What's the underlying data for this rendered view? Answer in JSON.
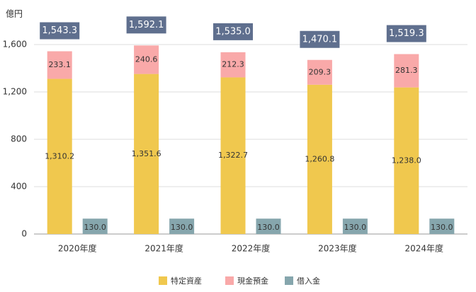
{
  "chart_data": {
    "type": "bar",
    "y_label": "億円",
    "categories": [
      "2020年度",
      "2021年度",
      "2022年度",
      "2023年度",
      "2024年度"
    ],
    "series": [
      {
        "name": "特定資産",
        "color": "#f0c84e",
        "stack": "a",
        "values": [
          1310.2,
          1351.6,
          1322.7,
          1260.8,
          1238.0
        ],
        "value_labels": [
          "1,310.2",
          "1,351.6",
          "1,322.7",
          "1,260.8",
          "1,238.0"
        ]
      },
      {
        "name": "現金預金",
        "color": "#f9a9a9",
        "stack": "a",
        "values": [
          233.1,
          240.6,
          212.3,
          209.3,
          281.3
        ],
        "value_labels": [
          "233.1",
          "240.6",
          "212.3",
          "209.3",
          "281.3"
        ]
      },
      {
        "name": "借入金",
        "color": "#86a6ad",
        "stack": "b",
        "values": [
          130,
          130,
          130,
          130,
          130
        ],
        "value_labels": [
          "130.0",
          "130.0",
          "130.0",
          "130.0",
          "130.0"
        ]
      }
    ],
    "totals": {
      "color": "#5f6f8e",
      "values": [
        1543.3,
        1592.1,
        1535.0,
        1470.1,
        1519.3
      ],
      "value_labels": [
        "1,543.3",
        "1,592.1",
        "1,535.0",
        "1,470.1",
        "1,519.3"
      ]
    },
    "ylim": [
      0,
      1600
    ],
    "yticks": [
      0,
      400,
      800,
      {
        "value": 1200,
        "label": "1,200"
      },
      {
        "value": 1600,
        "label": "1,600"
      }
    ],
    "grid": true
  }
}
